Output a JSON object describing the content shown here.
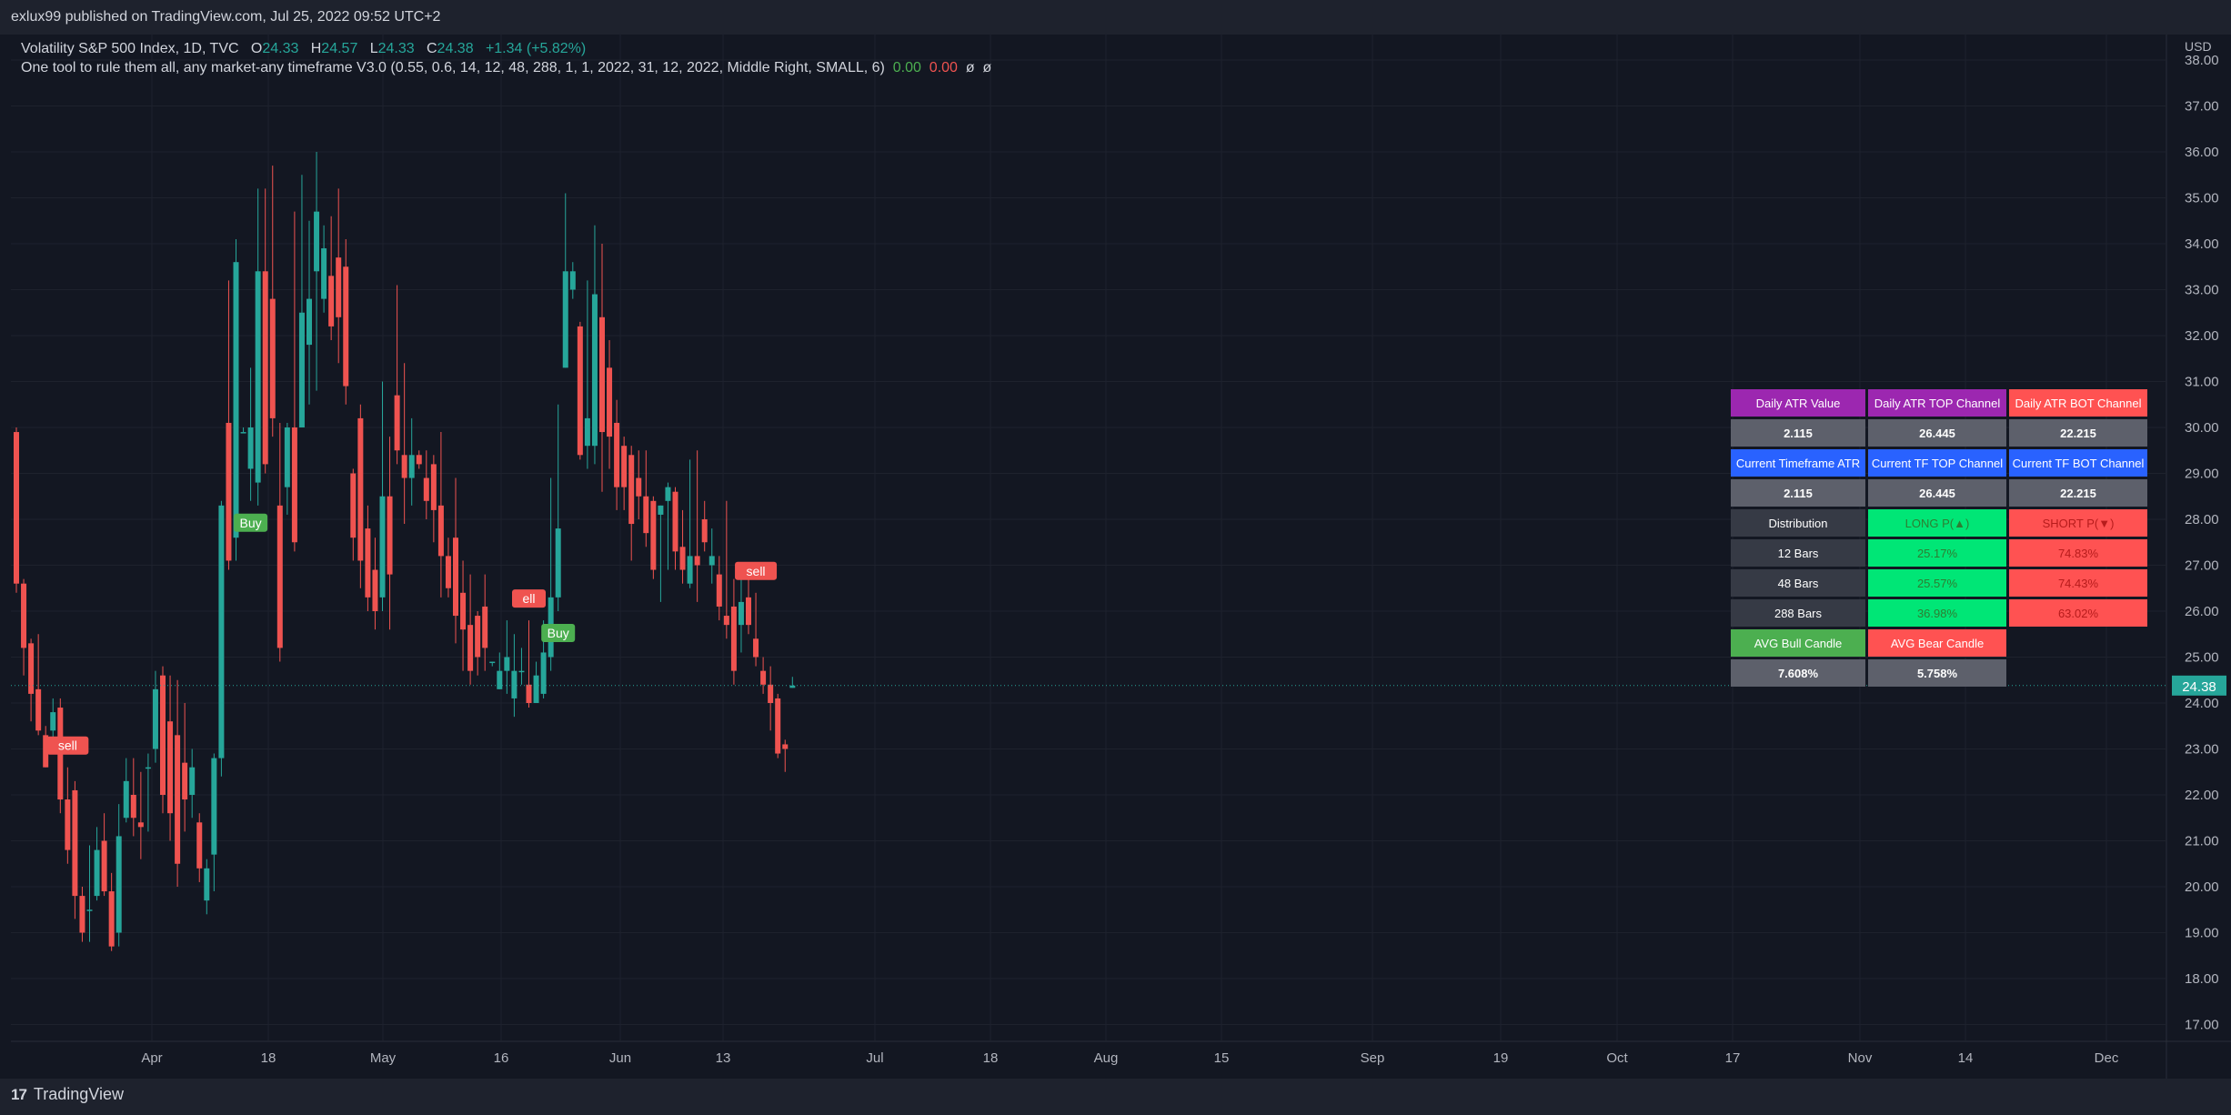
{
  "header": {
    "published": "exlux99 published on TradingView.com, Jul 25, 2022 09:52 UTC+2"
  },
  "legend": {
    "symbol_line": {
      "name": "Volatility S&P 500 Index, 1D, TVC",
      "o_label": "O",
      "o_value": "24.33",
      "h_label": "H",
      "h_value": "24.57",
      "l_label": "L",
      "l_value": "24.33",
      "c_label": "C",
      "c_value": "24.38",
      "change": "+1.34 (+5.82%)"
    },
    "indicator_line": {
      "name": "One tool to rule them all, any market-any timeframe V3.0 (0.55, 0.6, 14, 12, 48, 288, 1, 1, 2022, 31, 12, 2022, Middle Right, SMALL, 6)",
      "v1": "0.00",
      "v2": "0.00",
      "v3": "ø",
      "v4": "ø"
    }
  },
  "footer": {
    "brand": "TradingView"
  },
  "colors": {
    "up": "#26a69a",
    "down": "#ef5350",
    "background": "#131722",
    "buy_label": "#4caf50",
    "sell_label": "#ef5350",
    "last_price": "#26a69a"
  },
  "chart_data": {
    "type": "candlestick",
    "currency": "USD",
    "ylim": [
      16.6,
      38.3
    ],
    "y_ticks": [
      "17.00",
      "18.00",
      "19.00",
      "20.00",
      "21.00",
      "22.00",
      "23.00",
      "24.00",
      "25.00",
      "26.00",
      "27.00",
      "28.00",
      "29.00",
      "30.00",
      "31.00",
      "32.00",
      "33.00",
      "34.00",
      "35.00",
      "36.00",
      "37.00",
      "38.00"
    ],
    "x_ticks": [
      "Apr",
      "18",
      "May",
      "16",
      "Jun",
      "13",
      "Jul",
      "18",
      "Aug",
      "15",
      "Sep",
      "19",
      "Oct",
      "17",
      "Nov",
      "14",
      "Dec"
    ],
    "last_price": 24.38,
    "last_price_label": "24.38",
    "candles": [
      [
        29.9,
        26.6,
        30.0,
        26.4
      ],
      [
        26.6,
        25.2,
        26.7,
        24.6
      ],
      [
        25.3,
        24.2,
        25.4,
        23.6
      ],
      [
        24.3,
        23.4,
        25.5,
        23.3
      ],
      [
        23.3,
        22.6,
        23.5,
        22.6
      ],
      [
        23.4,
        23.8,
        24.1,
        22.9
      ],
      [
        23.9,
        21.9,
        24.1,
        21.6
      ],
      [
        21.9,
        20.8,
        22.6,
        20.5
      ],
      [
        22.1,
        19.8,
        22.3,
        19.3
      ],
      [
        19.8,
        19.0,
        20.0,
        18.8
      ],
      [
        19.5,
        19.5,
        20.9,
        18.8
      ],
      [
        19.8,
        20.8,
        21.3,
        19.7
      ],
      [
        21.0,
        19.9,
        21.6,
        19.8
      ],
      [
        19.9,
        18.7,
        20.3,
        18.6
      ],
      [
        19.0,
        21.1,
        21.8,
        18.7
      ],
      [
        21.5,
        22.3,
        22.8,
        21.4
      ],
      [
        22.0,
        21.5,
        22.8,
        21.1
      ],
      [
        21.4,
        21.3,
        22.5,
        20.6
      ],
      [
        22.6,
        22.6,
        22.9,
        21.2
      ],
      [
        23.0,
        24.3,
        24.7,
        22.7
      ],
      [
        24.6,
        22.0,
        24.8,
        21.6
      ],
      [
        23.6,
        21.6,
        24.6,
        21.0
      ],
      [
        23.3,
        20.5,
        24.5,
        20.0
      ],
      [
        22.7,
        21.9,
        24.0,
        21.2
      ],
      [
        22.0,
        22.6,
        23.0,
        21.5
      ],
      [
        21.4,
        20.4,
        21.6,
        20.1
      ],
      [
        19.7,
        20.4,
        20.6,
        19.4
      ],
      [
        20.7,
        22.8,
        22.9,
        19.9
      ],
      [
        22.8,
        28.3,
        28.4,
        22.4
      ],
      [
        30.1,
        27.1,
        33.2,
        26.9
      ],
      [
        27.6,
        33.6,
        34.1,
        27.1
      ],
      [
        29.9,
        29.9,
        30.0,
        29.9
      ],
      [
        29.1,
        30.0,
        31.3,
        28.4
      ],
      [
        28.8,
        33.4,
        35.2,
        28.3
      ],
      [
        33.4,
        29.2,
        35.2,
        29.0
      ],
      [
        32.8,
        30.2,
        35.7,
        29.8
      ],
      [
        28.3,
        25.2,
        30.1,
        24.9
      ],
      [
        28.7,
        30.0,
        30.1,
        28.1
      ],
      [
        30.0,
        27.5,
        34.7,
        27.3
      ],
      [
        30.0,
        32.5,
        35.5,
        30.0
      ],
      [
        31.8,
        32.8,
        34.5,
        30.5
      ],
      [
        33.4,
        34.7,
        36.0,
        30.8
      ],
      [
        32.8,
        33.9,
        34.4,
        32.5
      ],
      [
        33.3,
        32.2,
        34.6,
        31.9
      ],
      [
        33.7,
        32.4,
        35.2,
        31.4
      ],
      [
        33.5,
        30.9,
        34.1,
        30.5
      ],
      [
        29.0,
        27.6,
        29.1,
        27.1
      ],
      [
        30.2,
        27.1,
        30.5,
        26.5
      ],
      [
        27.8,
        26.3,
        28.3,
        26.0
      ],
      [
        26.9,
        26.0,
        27.6,
        25.6
      ],
      [
        26.3,
        28.5,
        31.0,
        26.0
      ],
      [
        28.5,
        26.8,
        29.8,
        25.6
      ],
      [
        30.7,
        29.5,
        33.1,
        29.2
      ],
      [
        29.4,
        28.9,
        31.4,
        27.9
      ],
      [
        28.9,
        29.4,
        30.2,
        28.3
      ],
      [
        29.4,
        29.2,
        29.5,
        29.1
      ],
      [
        28.9,
        28.4,
        29.5,
        28.0
      ],
      [
        29.2,
        28.2,
        29.4,
        27.5
      ],
      [
        28.3,
        27.2,
        29.9,
        26.3
      ],
      [
        27.2,
        26.5,
        27.6,
        26.3
      ],
      [
        27.6,
        25.9,
        28.9,
        25.3
      ],
      [
        26.4,
        25.6,
        27.1,
        24.7
      ],
      [
        25.7,
        24.7,
        26.8,
        24.4
      ],
      [
        25.9,
        25.0,
        26.0,
        24.6
      ],
      [
        26.1,
        25.2,
        26.8,
        24.7
      ],
      [
        24.9,
        24.9,
        24.9,
        24.8
      ],
      [
        24.3,
        24.7,
        25.1,
        24.3
      ],
      [
        24.7,
        25.0,
        25.8,
        24.2
      ],
      [
        24.1,
        24.7,
        25.5,
        23.7
      ],
      [
        24.7,
        24.7,
        25.2,
        24.4
      ],
      [
        24.4,
        24.0,
        25.8,
        23.9
      ],
      [
        24.0,
        24.6,
        24.9,
        24.1
      ],
      [
        24.2,
        25.1,
        25.8,
        24.1
      ],
      [
        25.0,
        26.3,
        28.9,
        24.7
      ],
      [
        26.3,
        27.8,
        30.5,
        26.0
      ],
      [
        31.3,
        33.4,
        35.1,
        31.3
      ],
      [
        33.0,
        33.4,
        33.6,
        32.8
      ],
      [
        32.2,
        29.4,
        32.3,
        29.3
      ],
      [
        29.6,
        30.2,
        33.2,
        29.1
      ],
      [
        29.6,
        32.9,
        34.4,
        29.2
      ],
      [
        32.4,
        29.9,
        34.0,
        28.6
      ],
      [
        31.3,
        29.8,
        31.9,
        29.1
      ],
      [
        30.1,
        28.7,
        30.6,
        28.2
      ],
      [
        29.6,
        28.7,
        29.8,
        28.2
      ],
      [
        29.4,
        27.9,
        29.6,
        27.1
      ],
      [
        28.9,
        28.5,
        29.5,
        28.0
      ],
      [
        28.5,
        27.7,
        29.5,
        27.4
      ],
      [
        28.4,
        26.9,
        28.5,
        26.7
      ],
      [
        28.1,
        28.3,
        28.3,
        26.2
      ],
      [
        28.4,
        28.7,
        28.8,
        26.9
      ],
      [
        28.6,
        27.3,
        28.7,
        26.9
      ],
      [
        27.4,
        26.9,
        28.2,
        26.6
      ],
      [
        26.6,
        27.2,
        29.3,
        26.5
      ],
      [
        27.2,
        27.0,
        29.5,
        26.2
      ],
      [
        28.0,
        27.5,
        28.4,
        27.3
      ],
      [
        27.0,
        27.2,
        27.8,
        26.6
      ],
      [
        26.8,
        26.1,
        27.2,
        25.8
      ],
      [
        25.9,
        25.7,
        28.4,
        25.4
      ],
      [
        26.1,
        24.7,
        26.7,
        24.4
      ],
      [
        25.7,
        26.2,
        26.7,
        25.1
      ],
      [
        26.3,
        25.7,
        26.9,
        25.5
      ],
      [
        25.4,
        25.0,
        26.4,
        24.8
      ],
      [
        24.7,
        24.4,
        25.0,
        24.2
      ],
      [
        24.4,
        24.0,
        24.8,
        23.4
      ],
      [
        24.1,
        22.9,
        24.2,
        22.8
      ],
      [
        23.1,
        23.0,
        23.2,
        22.5
      ],
      [
        24.33,
        24.38,
        24.57,
        24.33
      ]
    ],
    "signals": [
      {
        "text": "sell",
        "bar": 7,
        "kind": "sell"
      },
      {
        "text": "Buy",
        "bar": 32,
        "kind": "buy"
      },
      {
        "text": "ell",
        "bar": 70,
        "kind": "sell"
      },
      {
        "text": "Buy",
        "bar": 74,
        "kind": "buy"
      },
      {
        "text": "sell",
        "bar": 101,
        "kind": "sell"
      }
    ]
  },
  "atr_table": {
    "rows": [
      [
        {
          "text": "Daily ATR Value",
          "style": "purple"
        },
        {
          "text": "Daily ATR TOP Channel",
          "style": "purple"
        },
        {
          "text": "Daily ATR BOT Channel",
          "style": "red"
        }
      ],
      [
        {
          "text": "2.115",
          "style": "gray"
        },
        {
          "text": "26.445",
          "style": "gray"
        },
        {
          "text": "22.215",
          "style": "gray"
        }
      ],
      [
        {
          "text": "Current Timeframe ATR",
          "style": "blue"
        },
        {
          "text": "Current TF TOP Channel",
          "style": "blue"
        },
        {
          "text": "Current TF BOT Channel",
          "style": "blue"
        }
      ],
      [
        {
          "text": "2.115",
          "style": "gray"
        },
        {
          "text": "26.445",
          "style": "gray"
        },
        {
          "text": "22.215",
          "style": "gray"
        }
      ],
      [
        {
          "text": "Distribution",
          "style": "dark"
        },
        {
          "text": "LONG P(▲)",
          "style": "lime"
        },
        {
          "text": "SHORT P(▼)",
          "style": "rose"
        }
      ],
      [
        {
          "text": "12 Bars",
          "style": "dark"
        },
        {
          "text": "25.17%",
          "style": "lime"
        },
        {
          "text": "74.83%",
          "style": "rose"
        }
      ],
      [
        {
          "text": "48 Bars",
          "style": "dark"
        },
        {
          "text": "25.57%",
          "style": "lime"
        },
        {
          "text": "74.43%",
          "style": "rose"
        }
      ],
      [
        {
          "text": "288 Bars",
          "style": "dark"
        },
        {
          "text": "36.98%",
          "style": "lime"
        },
        {
          "text": "63.02%",
          "style": "rose"
        }
      ],
      [
        {
          "text": "AVG Bull Candle",
          "style": "green"
        },
        {
          "text": "AVG Bear Candle",
          "style": "red"
        },
        {
          "text": "",
          "style": "empty"
        }
      ],
      [
        {
          "text": "7.608%",
          "style": "gray"
        },
        {
          "text": "5.758%",
          "style": "gray"
        },
        {
          "text": "",
          "style": "empty"
        }
      ]
    ]
  }
}
